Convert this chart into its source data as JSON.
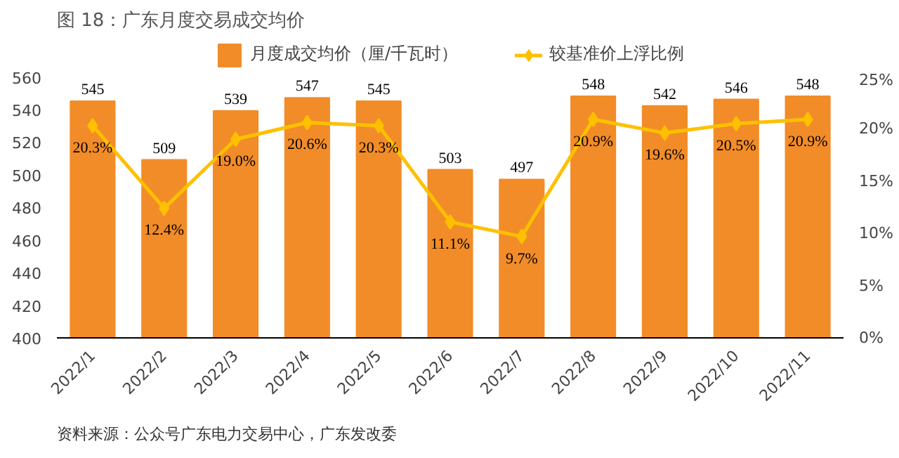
{
  "chart_data": {
    "type": "bar",
    "title": "图 18：广东月度交易成交均价",
    "categories": [
      "2022/1",
      "2022/2",
      "2022/3",
      "2022/4",
      "2022/5",
      "2022/6",
      "2022/7",
      "2022/8",
      "2022/9",
      "2022/10",
      "2022/11"
    ],
    "series": [
      {
        "name": "月度成交均价（厘/千瓦时）",
        "color": "#f28c28",
        "values": [
          545,
          509,
          539,
          547,
          545,
          503,
          497,
          548,
          542,
          546,
          548
        ],
        "data_labels": true
      },
      {
        "name": "较基准价上浮比例",
        "type": "line",
        "axis": "y2",
        "color": "#ffc000",
        "marker": "diamond",
        "values": [
          20.3,
          12.4,
          19.0,
          20.6,
          20.3,
          11.1,
          9.7,
          20.9,
          19.6,
          20.5,
          20.9
        ],
        "value_labels": [
          "20.3%",
          "12.4%",
          "19.0%",
          "20.6%",
          "20.3%",
          "11.1%",
          "9.7%",
          "20.9%",
          "19.6%",
          "20.5%",
          "20.9%"
        ]
      }
    ],
    "ylim": [
      400,
      560
    ],
    "yticks": [
      400,
      420,
      440,
      460,
      480,
      500,
      520,
      540,
      560
    ],
    "y2lim": [
      0,
      25
    ],
    "y2ticks": [
      {
        "value": 0,
        "label": "0%"
      },
      {
        "value": 5,
        "label": "5%"
      },
      {
        "value": 10,
        "label": "10%"
      },
      {
        "value": 15,
        "label": "15%"
      },
      {
        "value": 20,
        "label": "20%"
      },
      {
        "value": 25,
        "label": "25%"
      }
    ],
    "legend": "top",
    "grid": false,
    "annotations": [
      "资料来源：公众号广东电力交易中心，广东发改委"
    ]
  }
}
